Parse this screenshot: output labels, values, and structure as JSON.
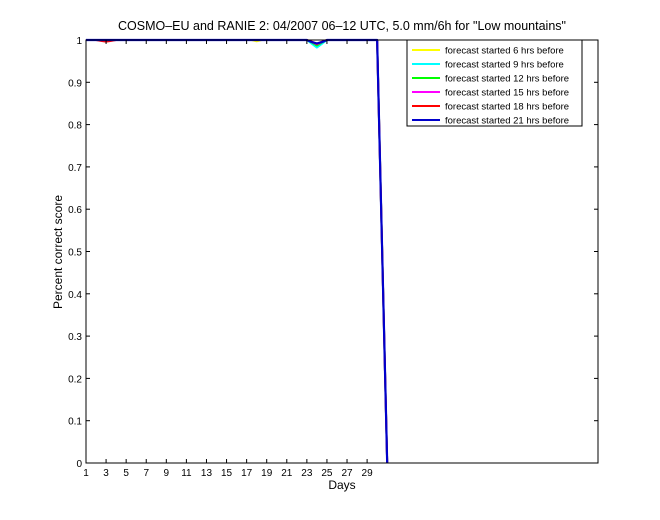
{
  "chart_data": {
    "type": "line",
    "title": "COSMO–EU and RANIE 2: 04/2007 06–12 UTC, 5.0 mm/6h for \"Low mountains\"",
    "xlabel": "Days",
    "ylabel": "Percent correct score",
    "xlim": [
      1,
      52
    ],
    "ylim": [
      0,
      1
    ],
    "x_ticks": [
      1,
      3,
      5,
      7,
      9,
      11,
      13,
      15,
      17,
      19,
      21,
      23,
      25,
      27,
      29
    ],
    "y_ticks": [
      0,
      0.1,
      0.2,
      0.3,
      0.4,
      0.5,
      0.6,
      0.7,
      0.8,
      0.9,
      1
    ],
    "grid": false,
    "legend_position": "top-right",
    "series": [
      {
        "name": "forecast started 6 hrs before",
        "color": "#ffff00",
        "x": [
          1,
          2,
          3,
          4,
          5,
          6,
          7,
          8,
          9,
          10,
          11,
          12,
          13,
          14,
          15,
          16,
          17,
          17.5,
          18,
          18.5,
          19,
          20,
          21,
          22,
          23,
          23.5,
          24,
          24.5,
          25,
          26,
          27,
          28,
          29,
          30,
          31
        ],
        "y": [
          1,
          1,
          1,
          1,
          1,
          1,
          1,
          1,
          1,
          1,
          1,
          1,
          1,
          1,
          1,
          1,
          1,
          1,
          0.997,
          1,
          1,
          1,
          1,
          1,
          1,
          0.993,
          0.985,
          0.993,
          1,
          1,
          1,
          1,
          1,
          1,
          0
        ]
      },
      {
        "name": "forecast started 9 hrs before",
        "color": "#00ffff",
        "x": [
          1,
          2,
          3,
          4,
          5,
          6,
          7,
          8,
          9,
          10,
          11,
          12,
          13,
          14,
          15,
          16,
          17,
          18,
          19,
          20,
          21,
          22,
          23,
          23.5,
          24,
          24.5,
          25,
          26,
          27,
          28,
          29,
          30,
          31
        ],
        "y": [
          1,
          1,
          1,
          1,
          1,
          1,
          1,
          1,
          1,
          1,
          1,
          1,
          1,
          1,
          1,
          1,
          1,
          1,
          1,
          1,
          1,
          1,
          1,
          0.991,
          0.982,
          0.991,
          1,
          1,
          1,
          1,
          1,
          1,
          0
        ]
      },
      {
        "name": "forecast started 12 hrs before",
        "color": "#00ff00",
        "x": [
          1,
          2,
          3,
          4,
          5,
          6,
          7,
          8,
          9,
          10,
          11,
          12,
          13,
          14,
          15,
          16,
          17,
          18,
          19,
          20,
          21,
          22,
          23,
          23.5,
          24,
          24.5,
          25,
          26,
          27,
          28,
          29,
          30,
          31
        ],
        "y": [
          1,
          1,
          1,
          1,
          1,
          1,
          1,
          1,
          1,
          1,
          1,
          1,
          1,
          1,
          1,
          1,
          1,
          1,
          1,
          1,
          1,
          1,
          1,
          0.994,
          0.987,
          0.994,
          1,
          1,
          1,
          1,
          1,
          1,
          0
        ]
      },
      {
        "name": "forecast started 15 hrs before",
        "color": "#ff00ff",
        "x": [
          1,
          2,
          3,
          4,
          5,
          6,
          7,
          8,
          9,
          10,
          11,
          12,
          13,
          14,
          15,
          16,
          17,
          18,
          19,
          20,
          21,
          22,
          23,
          23.5,
          24,
          24.5,
          25,
          26,
          27,
          28,
          29,
          30,
          31
        ],
        "y": [
          1,
          1,
          1,
          1,
          1,
          1,
          1,
          1,
          1,
          1,
          1,
          1,
          1,
          1,
          1,
          1,
          1,
          1,
          1,
          1,
          1,
          1,
          1,
          0.995,
          0.99,
          0.995,
          1,
          1,
          1,
          1,
          1,
          1,
          0
        ]
      },
      {
        "name": "forecast started 18 hrs before",
        "color": "#ff0000",
        "x": [
          1,
          2,
          2.5,
          3,
          3.5,
          4,
          5,
          6,
          7,
          8,
          9,
          10,
          11,
          12,
          13,
          14,
          15,
          16,
          17,
          18,
          19,
          20,
          21,
          22,
          23,
          23.5,
          24,
          24.5,
          25,
          26,
          27,
          28,
          29,
          30,
          31
        ],
        "y": [
          1,
          1,
          0.998,
          0.996,
          0.998,
          1,
          1,
          1,
          1,
          1,
          1,
          1,
          1,
          1,
          1,
          1,
          1,
          1,
          1,
          1,
          1,
          1,
          1,
          1,
          1,
          0.996,
          0.991,
          0.996,
          1,
          1,
          1,
          1,
          1,
          1,
          0
        ]
      },
      {
        "name": "forecast started 21 hrs before",
        "color": "#0000cc",
        "x": [
          1,
          2,
          3,
          4,
          5,
          6,
          7,
          8,
          9,
          10,
          11,
          12,
          13,
          14,
          15,
          16,
          17,
          18,
          19,
          20,
          21,
          22,
          23,
          23.5,
          24,
          24.5,
          25,
          26,
          27,
          28,
          29,
          30,
          31
        ],
        "y": [
          1,
          1,
          1,
          1,
          1,
          1,
          1,
          1,
          1,
          1,
          1,
          1,
          1,
          1,
          1,
          1,
          1,
          1,
          1,
          1,
          1,
          1,
          1,
          0.995,
          0.992,
          0.995,
          1,
          1,
          1,
          1,
          1,
          1,
          0
        ]
      }
    ]
  }
}
